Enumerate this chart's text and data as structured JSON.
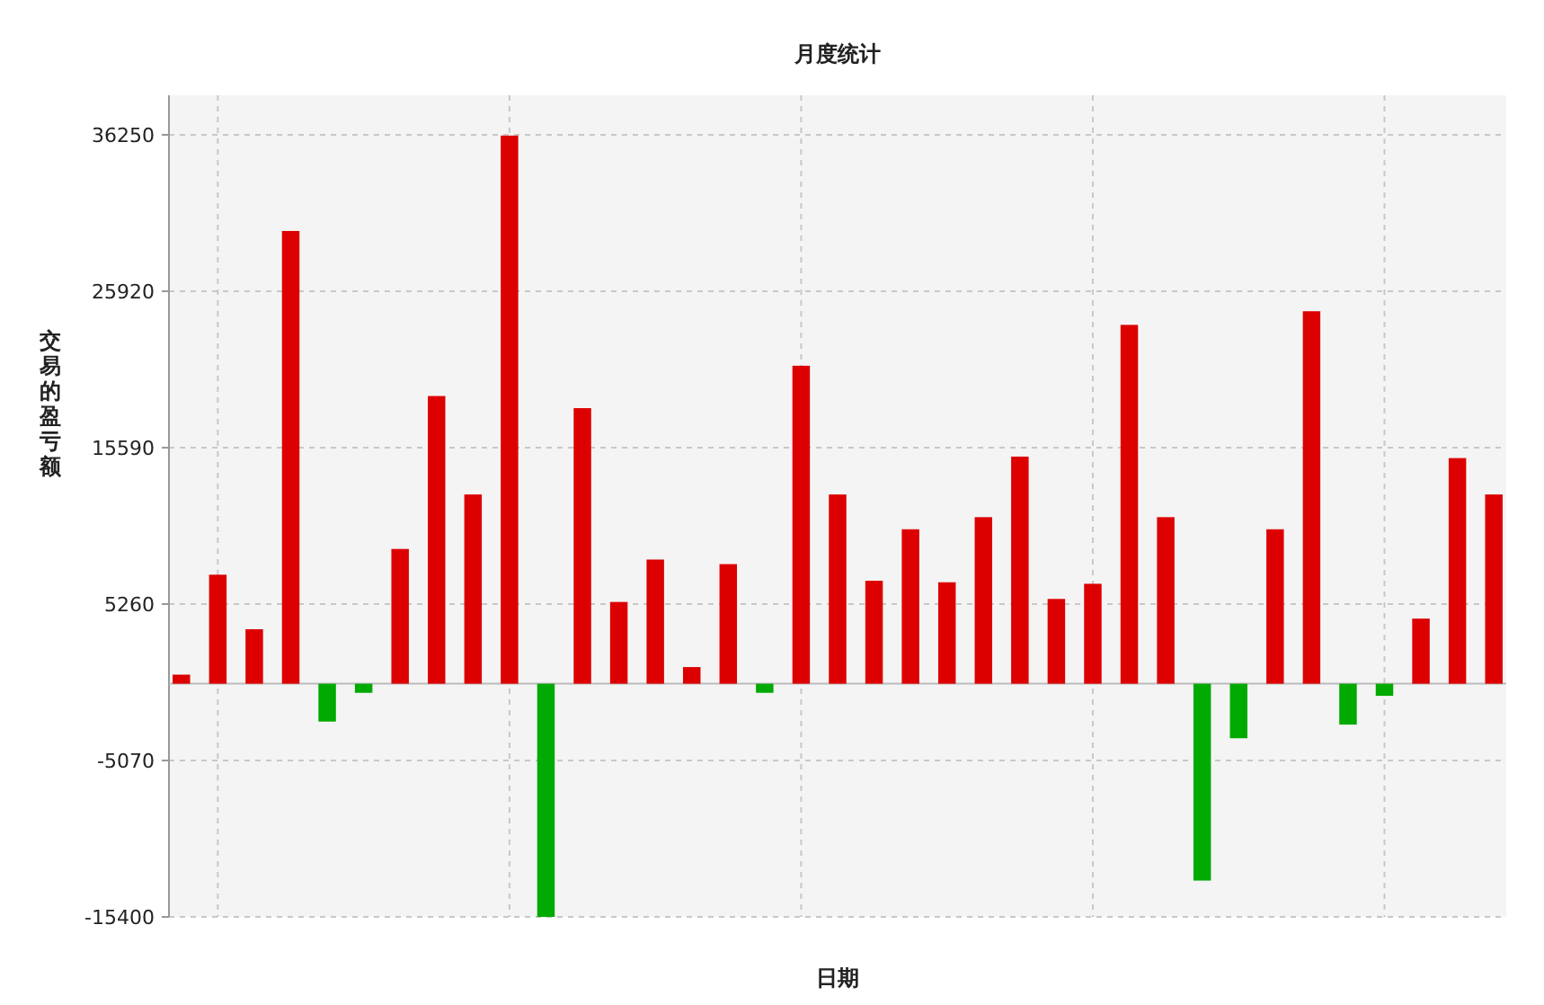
{
  "chart_data": {
    "type": "bar",
    "title": "月度统计",
    "xlabel": "日期",
    "ylabel": "交易的盈亏额",
    "categories": [
      null,
      null,
      null,
      null,
      null,
      null,
      null,
      null,
      null,
      null,
      null,
      null,
      null,
      null,
      null,
      null,
      null,
      null,
      null,
      null,
      null,
      null,
      null,
      null,
      null,
      null,
      null,
      null,
      null,
      null,
      null,
      null,
      null,
      null,
      null,
      null,
      null
    ],
    "values": [
      600,
      7200,
      3600,
      29900,
      -2500,
      -600,
      8900,
      19000,
      12500,
      36200,
      -15400,
      18200,
      5400,
      8200,
      1100,
      7900,
      -600,
      21000,
      12500,
      6800,
      10200,
      6700,
      11000,
      15000,
      5600,
      6600,
      23700,
      11000,
      -13000,
      -3600,
      10200,
      24600,
      -2700,
      -800,
      4300,
      14900,
      12500
    ],
    "colors": [
      "#dd0000",
      "#dd0000",
      "#dd0000",
      "#dd0000",
      "#00aa00",
      "#00aa00",
      "#dd0000",
      "#dd0000",
      "#dd0000",
      "#dd0000",
      "#00aa00",
      "#dd0000",
      "#dd0000",
      "#dd0000",
      "#dd0000",
      "#dd0000",
      "#00aa00",
      "#dd0000",
      "#dd0000",
      "#dd0000",
      "#dd0000",
      "#dd0000",
      "#dd0000",
      "#dd0000",
      "#dd0000",
      "#dd0000",
      "#dd0000",
      "#dd0000",
      "#00aa00",
      "#00aa00",
      "#dd0000",
      "#dd0000",
      "#00aa00",
      "#00aa00",
      "#dd0000",
      "#dd0000",
      "#dd0000"
    ],
    "ylim": [
      -15400,
      36250
    ],
    "yticks": [
      -15400,
      -5070,
      5260,
      15590,
      25920,
      36250
    ],
    "grid": true
  }
}
